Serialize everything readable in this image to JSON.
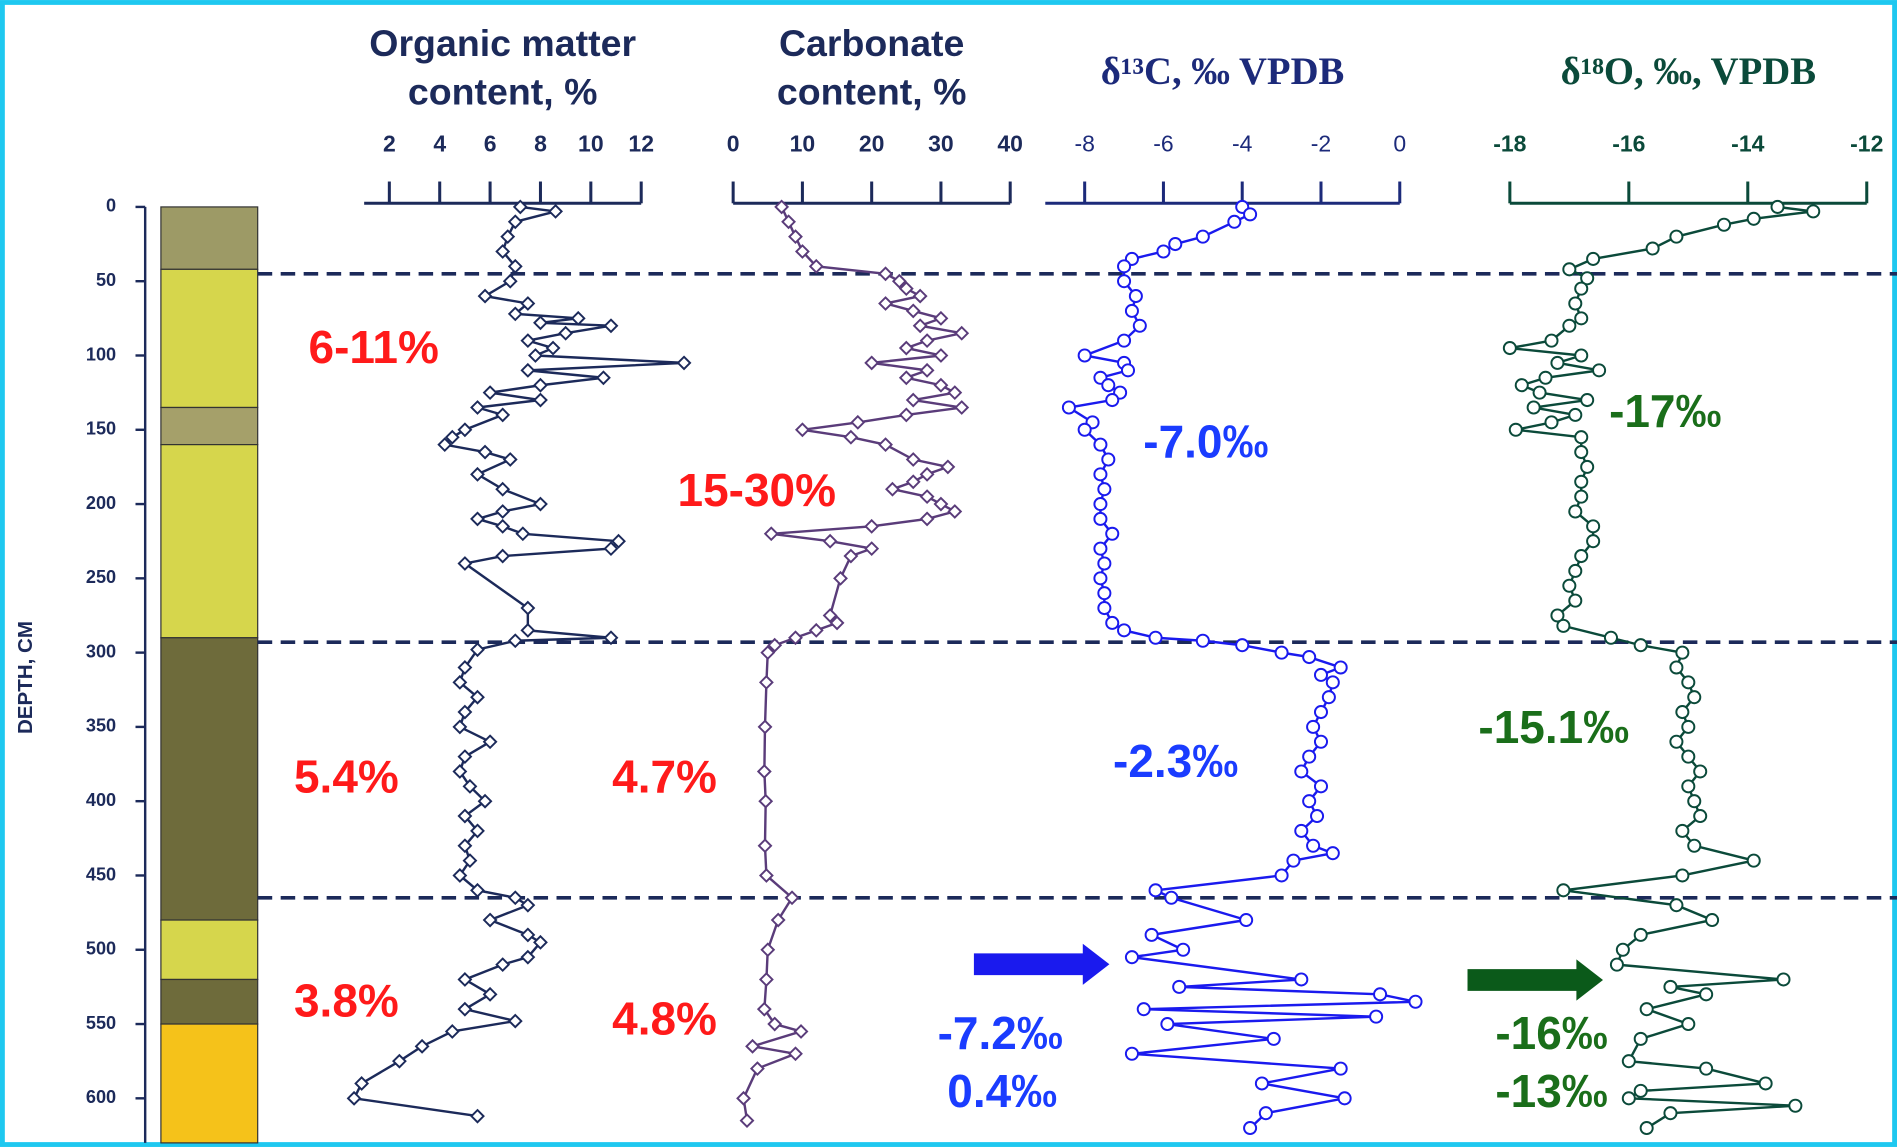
{
  "chart_data": {
    "type": "depth-profile",
    "y_label": "DEPTH, CM",
    "ylim": [
      0,
      630
    ],
    "yticks": [
      0,
      50,
      100,
      150,
      200,
      250,
      300,
      350,
      400,
      450,
      500,
      550,
      600
    ],
    "lithology": [
      {
        "top": 0,
        "bottom": 42,
        "color": "#9d9a66"
      },
      {
        "top": 42,
        "bottom": 135,
        "color": "#d6d64c"
      },
      {
        "top": 135,
        "bottom": 160,
        "color": "#a5a06a"
      },
      {
        "top": 160,
        "bottom": 290,
        "color": "#d6d64c"
      },
      {
        "top": 290,
        "bottom": 480,
        "color": "#6e6b3b"
      },
      {
        "top": 480,
        "bottom": 520,
        "color": "#d6d64c"
      },
      {
        "top": 520,
        "bottom": 550,
        "color": "#6e6b3b"
      },
      {
        "top": 550,
        "bottom": 630,
        "color": "#f5c21a"
      }
    ],
    "boundaries": [
      45,
      293,
      465
    ],
    "boundary_color": "#1c2a5a",
    "panels": [
      {
        "title_lines": [
          "Organic matter",
          "content, %"
        ],
        "serif": false,
        "axis_color": "#1c2a5a",
        "color": "#1c2a5a",
        "marker": "diamond",
        "xlim": [
          1,
          12
        ],
        "xticks": [
          2,
          4,
          6,
          8,
          10,
          12
        ],
        "depth": [
          0,
          3,
          10,
          20,
          30,
          40,
          50,
          60,
          65,
          72,
          75,
          78,
          80,
          85,
          90,
          95,
          100,
          105,
          110,
          115,
          120,
          125,
          130,
          135,
          140,
          150,
          155,
          160,
          165,
          170,
          180,
          190,
          200,
          205,
          210,
          215,
          220,
          225,
          230,
          235,
          240,
          270,
          285,
          290,
          292,
          298,
          310,
          320,
          330,
          340,
          350,
          360,
          370,
          380,
          390,
          400,
          410,
          420,
          430,
          440,
          450,
          460,
          465,
          470,
          480,
          490,
          495,
          505,
          510,
          520,
          530,
          540,
          548,
          555,
          565,
          575,
          590,
          600,
          612
        ],
        "values": [
          7.2,
          8.6,
          7.0,
          6.7,
          6.5,
          7.0,
          6.8,
          5.8,
          7.5,
          7.0,
          9.5,
          8.0,
          10.8,
          9.0,
          7.5,
          8.5,
          7.8,
          13.7,
          7.5,
          10.5,
          8.0,
          6.0,
          8.0,
          5.5,
          6.5,
          5.0,
          4.5,
          4.2,
          5.8,
          6.8,
          5.5,
          6.5,
          8.0,
          6.5,
          5.5,
          6.5,
          7.3,
          11.1,
          10.8,
          6.5,
          5.0,
          7.5,
          7.5,
          10.8,
          7.0,
          5.5,
          5.0,
          4.8,
          5.5,
          5.0,
          4.8,
          6.0,
          5.0,
          4.8,
          5.2,
          5.8,
          5.0,
          5.5,
          5.0,
          5.2,
          4.8,
          5.5,
          7.0,
          7.5,
          6.0,
          7.5,
          8.0,
          7.5,
          6.5,
          5.0,
          6.0,
          5.0,
          7.0,
          4.5,
          3.3,
          2.4,
          0.9,
          0.6,
          5.5
        ]
      },
      {
        "title_lines": [
          "Carbonate",
          "content, %"
        ],
        "serif": false,
        "axis_color": "#1c2a5a",
        "color": "#5a3c7a",
        "marker": "diamond",
        "xlim": [
          0,
          40
        ],
        "xticks": [
          0,
          10,
          20,
          30,
          40
        ],
        "depth": [
          0,
          10,
          20,
          30,
          40,
          45,
          50,
          55,
          60,
          65,
          70,
          75,
          80,
          85,
          90,
          95,
          100,
          105,
          110,
          115,
          120,
          125,
          130,
          135,
          140,
          145,
          150,
          155,
          160,
          170,
          175,
          180,
          185,
          190,
          195,
          200,
          205,
          210,
          215,
          220,
          225,
          230,
          235,
          250,
          275,
          280,
          285,
          290,
          295,
          300,
          320,
          350,
          380,
          400,
          430,
          450,
          465,
          480,
          500,
          520,
          540,
          550,
          555,
          565,
          570,
          580,
          600,
          615
        ],
        "values": [
          7,
          8,
          9,
          10,
          12,
          22,
          24,
          25,
          27,
          22,
          26,
          30,
          27,
          33,
          28,
          25,
          30,
          20,
          28,
          25,
          30,
          32,
          26,
          33,
          25,
          18,
          10,
          17,
          22,
          26,
          31,
          28,
          26,
          23,
          28,
          30,
          32,
          28,
          20,
          5.5,
          14,
          20,
          17,
          15.5,
          14,
          15,
          12,
          9,
          6,
          5,
          4.8,
          4.6,
          4.5,
          4.7,
          4.6,
          4.8,
          8.5,
          6.5,
          5,
          4.8,
          4.5,
          6,
          9.8,
          2.8,
          9,
          3.5,
          1.5,
          2
        ]
      },
      {
        "title_lines": [
          "δ¹³C, ‰ VPDB"
        ],
        "serif": true,
        "axis_color": "#1c2a7a",
        "color": "#1a1aee",
        "marker": "circle",
        "xlim": [
          -9,
          0
        ],
        "xticks": [
          -8,
          -6,
          -4,
          -2,
          0
        ],
        "depth": [
          0,
          5,
          10,
          20,
          25,
          30,
          35,
          40,
          50,
          60,
          70,
          80,
          90,
          100,
          105,
          110,
          115,
          120,
          125,
          130,
          135,
          145,
          150,
          160,
          170,
          180,
          190,
          200,
          210,
          220,
          230,
          240,
          250,
          260,
          270,
          280,
          285,
          290,
          292,
          295,
          300,
          303,
          310,
          315,
          320,
          330,
          340,
          350,
          360,
          370,
          380,
          390,
          400,
          410,
          420,
          430,
          435,
          440,
          450,
          460,
          465,
          480,
          490,
          500,
          505,
          520,
          525,
          530,
          535,
          540,
          545,
          550,
          560,
          570,
          580,
          590,
          600,
          610,
          620
        ],
        "values": [
          -4.0,
          -3.8,
          -4.2,
          -5.0,
          -5.7,
          -6.0,
          -6.8,
          -7.0,
          -7.0,
          -6.7,
          -6.8,
          -6.6,
          -7.0,
          -8.0,
          -7.0,
          -6.9,
          -7.6,
          -7.4,
          -7.1,
          -7.3,
          -8.4,
          -7.8,
          -8.0,
          -7.6,
          -7.4,
          -7.6,
          -7.5,
          -7.6,
          -7.6,
          -7.3,
          -7.6,
          -7.5,
          -7.6,
          -7.5,
          -7.5,
          -7.3,
          -7.0,
          -6.2,
          -5.0,
          -4.0,
          -3.0,
          -2.3,
          -1.5,
          -2.0,
          -1.7,
          -1.8,
          -2.0,
          -2.2,
          -2.0,
          -2.3,
          -2.5,
          -2.0,
          -2.3,
          -2.1,
          -2.5,
          -2.2,
          -1.7,
          -2.7,
          -3.0,
          -6.2,
          -5.8,
          -3.9,
          -6.3,
          -5.5,
          -6.8,
          -2.5,
          -5.6,
          -0.5,
          0.4,
          -6.5,
          -0.6,
          -5.9,
          -3.2,
          -6.8,
          -1.5,
          -3.5,
          -1.4,
          -3.4,
          -3.8
        ]
      },
      {
        "title_lines": [
          "δ¹⁸O, ‰, VPDB"
        ],
        "serif": true,
        "axis_color": "#0b4a3a",
        "color": "#0b4a3a",
        "marker": "circle",
        "xlim": [
          -18,
          -12
        ],
        "xticks": [
          -18,
          -16,
          -14,
          -12
        ],
        "depth": [
          0,
          3,
          8,
          12,
          20,
          28,
          35,
          42,
          48,
          55,
          65,
          75,
          80,
          90,
          95,
          100,
          105,
          110,
          115,
          120,
          125,
          130,
          135,
          140,
          145,
          150,
          155,
          165,
          175,
          185,
          195,
          205,
          215,
          225,
          235,
          245,
          255,
          265,
          275,
          282,
          290,
          295,
          300,
          310,
          320,
          330,
          340,
          350,
          360,
          370,
          380,
          390,
          400,
          410,
          420,
          430,
          440,
          450,
          460,
          470,
          480,
          490,
          500,
          510,
          520,
          525,
          530,
          540,
          550,
          560,
          575,
          580,
          590,
          595,
          600,
          605,
          610,
          620
        ],
        "values": [
          -13.5,
          -12.9,
          -13.9,
          -14.4,
          -15.2,
          -15.6,
          -16.6,
          -17.0,
          -16.7,
          -16.8,
          -16.9,
          -16.8,
          -17.0,
          -17.3,
          -18.0,
          -16.8,
          -17.2,
          -16.5,
          -17.4,
          -17.8,
          -17.5,
          -16.7,
          -17.6,
          -16.9,
          -17.3,
          -17.9,
          -16.8,
          -16.8,
          -16.7,
          -16.8,
          -16.8,
          -16.9,
          -16.6,
          -16.6,
          -16.8,
          -16.9,
          -17.0,
          -16.9,
          -17.2,
          -17.1,
          -16.3,
          -15.8,
          -15.1,
          -15.2,
          -15.0,
          -14.9,
          -15.1,
          -15.0,
          -15.2,
          -15.0,
          -14.8,
          -15.0,
          -14.9,
          -14.8,
          -15.1,
          -14.9,
          -13.9,
          -15.1,
          -17.1,
          -15.2,
          -14.6,
          -15.8,
          -16.1,
          -16.2,
          -13.4,
          -15.3,
          -14.7,
          -15.7,
          -15.0,
          -15.8,
          -16.0,
          -14.7,
          -13.7,
          -15.8,
          -16.0,
          -13.2,
          -15.3,
          -15.7
        ]
      }
    ],
    "annotations": [
      {
        "text": "6-11%",
        "color": "#ff1a1a"
      },
      {
        "text": "15-30%",
        "color": "#ff1a1a"
      },
      {
        "text": "5.4%",
        "color": "#ff1a1a"
      },
      {
        "text": "4.7%",
        "color": "#ff1a1a"
      },
      {
        "text": "3.8%",
        "color": "#ff1a1a"
      },
      {
        "text": "4.8%",
        "color": "#ff1a1a"
      },
      {
        "text": "-7.0‰",
        "color": "#1a3cff"
      },
      {
        "text": "-2.3‰",
        "color": "#1a3cff"
      },
      {
        "text": "-7.2‰",
        "color": "#1a3cff"
      },
      {
        "text": "0.4‰",
        "color": "#1a3cff"
      },
      {
        "text": "-17‰",
        "color": "#1a6e1a"
      },
      {
        "text": "-15.1‰",
        "color": "#1a6e1a"
      },
      {
        "text": "-16‰",
        "color": "#1a6e1a"
      },
      {
        "text": "-13‰",
        "color": "#1a6e1a"
      }
    ]
  }
}
